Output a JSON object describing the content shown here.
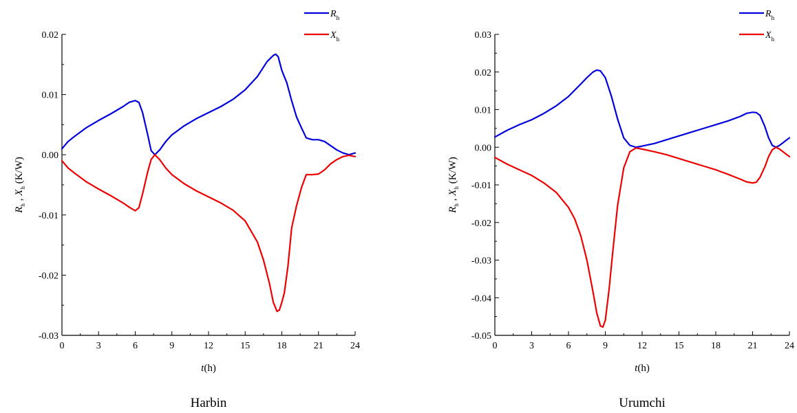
{
  "chart_data": [
    {
      "type": "line",
      "caption": "Harbin",
      "xlabel_var": "t",
      "xlabel_unit": "(h)",
      "ylabel_r": "R",
      "ylabel_sub": "h",
      "ylabel_sep": " , ",
      "ylabel_x": "X",
      "ylabel_unit": " (K/W)",
      "xlim": [
        0,
        24
      ],
      "ylim": [
        -0.03,
        0.02
      ],
      "xticks": [
        0,
        3,
        6,
        9,
        12,
        15,
        18,
        21,
        24
      ],
      "xtick_labels": [
        "0",
        "3",
        "6",
        "9",
        "12",
        "15",
        "18",
        "21",
        "24"
      ],
      "yticks": [
        -0.03,
        -0.02,
        -0.01,
        0.0,
        0.01,
        0.02
      ],
      "ytick_labels": [
        "-0.03",
        "-0.02",
        "-0.01",
        "0.00",
        "0.01",
        "0.02"
      ],
      "legend_position": "top-right",
      "series": [
        {
          "name": "R",
          "sub": "h",
          "color": "#0000dd",
          "x": [
            0,
            0.5,
            1,
            2,
            3,
            4,
            5,
            5.5,
            6,
            6.3,
            6.6,
            7,
            7.3,
            7.6,
            8,
            8.5,
            9,
            10,
            11,
            12,
            13,
            14,
            15,
            16,
            16.8,
            17.3,
            17.5,
            17.7,
            18,
            18.4,
            18.8,
            19.2,
            19.6,
            20,
            20.5,
            21,
            21.5,
            22,
            22.5,
            23,
            23.5,
            24
          ],
          "y": [
            0.001,
            0.0022,
            0.003,
            0.0045,
            0.0057,
            0.0068,
            0.008,
            0.0087,
            0.009,
            0.0087,
            0.007,
            0.0035,
            0.0007,
            0.0,
            0.0008,
            0.0022,
            0.0033,
            0.0048,
            0.006,
            0.007,
            0.008,
            0.0092,
            0.0108,
            0.013,
            0.0155,
            0.0165,
            0.0167,
            0.0163,
            0.014,
            0.012,
            0.009,
            0.0063,
            0.0045,
            0.0028,
            0.0025,
            0.0025,
            0.0022,
            0.0015,
            0.0008,
            0.0003,
            0.0,
            0.0003
          ]
        },
        {
          "name": "X",
          "sub": "h",
          "color": "#ee0000",
          "x": [
            0,
            0.5,
            1,
            2,
            3,
            4,
            5,
            5.5,
            6,
            6.3,
            6.6,
            7,
            7.3,
            7.6,
            8,
            8.5,
            9,
            10,
            11,
            12,
            13,
            14,
            15,
            16,
            16.5,
            17,
            17.3,
            17.6,
            17.8,
            18,
            18.2,
            18.5,
            18.8,
            19.2,
            19.6,
            20,
            20.5,
            21,
            21.5,
            22,
            22.5,
            23,
            23.5,
            24
          ],
          "y": [
            -0.001,
            -0.0022,
            -0.003,
            -0.0045,
            -0.0057,
            -0.0068,
            -0.008,
            -0.0087,
            -0.0093,
            -0.0088,
            -0.0065,
            -0.003,
            -0.0008,
            0.0,
            -0.0008,
            -0.0022,
            -0.0033,
            -0.0048,
            -0.006,
            -0.007,
            -0.008,
            -0.0092,
            -0.011,
            -0.0145,
            -0.0175,
            -0.0215,
            -0.0245,
            -0.026,
            -0.0258,
            -0.0245,
            -0.023,
            -0.0185,
            -0.0122,
            -0.0085,
            -0.0055,
            -0.0033,
            -0.0033,
            -0.0032,
            -0.0025,
            -0.0015,
            -0.0008,
            -0.0003,
            -0.0001,
            -0.0003
          ]
        }
      ]
    },
    {
      "type": "line",
      "caption": "Urumchi",
      "xlabel_var": "t",
      "xlabel_unit": "(h)",
      "ylabel_r": "R",
      "ylabel_sub": "h",
      "ylabel_sep": " , ",
      "ylabel_x": "X",
      "ylabel_unit": " (K/W)",
      "xlim": [
        0,
        24
      ],
      "ylim": [
        -0.05,
        0.03
      ],
      "xticks": [
        0,
        3,
        6,
        9,
        12,
        15,
        18,
        21,
        24
      ],
      "xtick_labels": [
        "0",
        "3",
        "6",
        "9",
        "12",
        "15",
        "18",
        "21",
        "24"
      ],
      "yticks": [
        -0.05,
        -0.04,
        -0.03,
        -0.02,
        -0.01,
        0.0,
        0.01,
        0.02,
        0.03
      ],
      "ytick_labels": [
        "-0.05",
        "-0.04",
        "-0.03",
        "-0.02",
        "-0.01",
        "0.00",
        "0.01",
        "0.02",
        "0.03"
      ],
      "legend_position": "top-right",
      "series": [
        {
          "name": "R",
          "sub": "h",
          "color": "#0000dd",
          "x": [
            0,
            1,
            2,
            3,
            4,
            5,
            6,
            7,
            7.5,
            8,
            8.3,
            8.6,
            9,
            9.5,
            10,
            10.5,
            11,
            11.5,
            12,
            13,
            14,
            15,
            16,
            17,
            18,
            19,
            20,
            20.5,
            21,
            21.3,
            21.6,
            22,
            22.3,
            22.6,
            22.9,
            23.2,
            23.6,
            24
          ],
          "y": [
            0.0027,
            0.0045,
            0.006,
            0.0073,
            0.009,
            0.011,
            0.0135,
            0.0168,
            0.0185,
            0.02,
            0.0205,
            0.0203,
            0.0185,
            0.0135,
            0.0075,
            0.0025,
            0.0005,
            0.0,
            0.0003,
            0.001,
            0.002,
            0.003,
            0.004,
            0.005,
            0.006,
            0.007,
            0.0082,
            0.009,
            0.0093,
            0.0092,
            0.0085,
            0.0055,
            0.0025,
            0.0005,
            0.0,
            0.0005,
            0.0015,
            0.0025
          ]
        },
        {
          "name": "X",
          "sub": "h",
          "color": "#ee0000",
          "x": [
            0,
            1,
            2,
            3,
            4,
            5,
            6,
            6.5,
            7,
            7.5,
            8,
            8.3,
            8.6,
            8.8,
            9,
            9.3,
            9.6,
            10,
            10.5,
            11,
            11.5,
            12,
            13,
            14,
            15,
            16,
            17,
            18,
            19,
            20,
            20.5,
            21,
            21.3,
            21.6,
            22,
            22.3,
            22.6,
            22.9,
            23.2,
            23.6,
            24
          ],
          "y": [
            -0.0027,
            -0.0045,
            -0.006,
            -0.0075,
            -0.0095,
            -0.012,
            -0.016,
            -0.019,
            -0.0235,
            -0.03,
            -0.0385,
            -0.044,
            -0.0475,
            -0.0478,
            -0.046,
            -0.038,
            -0.028,
            -0.0155,
            -0.0055,
            -0.0012,
            -0.0002,
            -0.0005,
            -0.0012,
            -0.002,
            -0.003,
            -0.004,
            -0.005,
            -0.006,
            -0.0072,
            -0.0085,
            -0.0092,
            -0.0095,
            -0.0093,
            -0.008,
            -0.0052,
            -0.0025,
            -0.0007,
            0.0,
            -0.0005,
            -0.0015,
            -0.0025
          ]
        }
      ]
    }
  ]
}
